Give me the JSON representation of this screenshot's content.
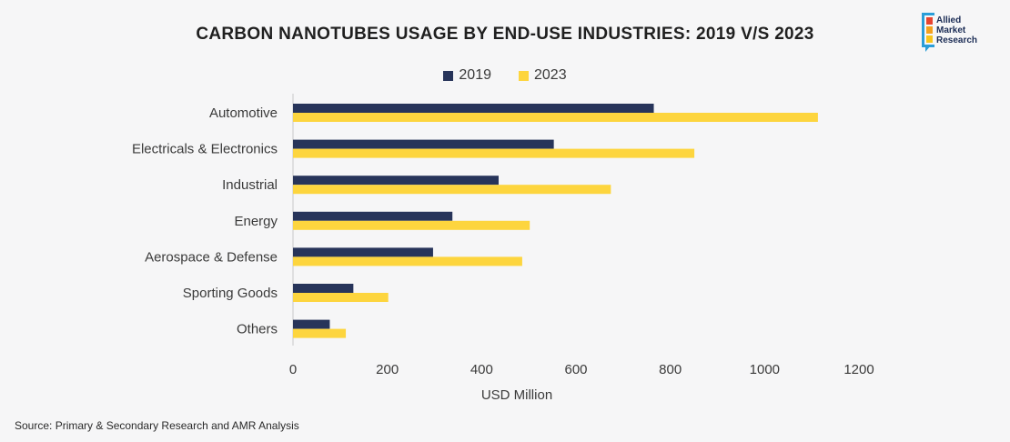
{
  "chart_data": {
    "type": "bar",
    "orientation": "horizontal",
    "title": "CARBON NANOTUBES USAGE BY END-USE INDUSTRIES: 2019 V/S 2023",
    "xlabel": "USD Million",
    "ylabel": "",
    "categories": [
      "Automotive",
      "Electricals & Electronics",
      "Industrial",
      "Energy",
      "Aerospace & Defense",
      "Sporting Goods",
      "Others"
    ],
    "series": [
      {
        "name": "2019",
        "color": "#27345a",
        "values": [
          765,
          553,
          436,
          338,
          297,
          128,
          78
        ]
      },
      {
        "name": "2023",
        "color": "#fdd53e",
        "values": [
          1113,
          851,
          674,
          502,
          486,
          202,
          112
        ]
      }
    ],
    "xlim": [
      0,
      1200
    ],
    "xticks": [
      "0",
      "200",
      "400",
      "600",
      "800",
      "1000",
      "1200"
    ],
    "legend_position": "top-center",
    "grid": false
  },
  "logo": {
    "line1": "Allied",
    "line2": "Market",
    "line3": "Research",
    "colors": [
      "#e8432f",
      "#f4a11d",
      "#f9c51b"
    ]
  },
  "source": "Source: Primary & Secondary Research and AMR Analysis"
}
